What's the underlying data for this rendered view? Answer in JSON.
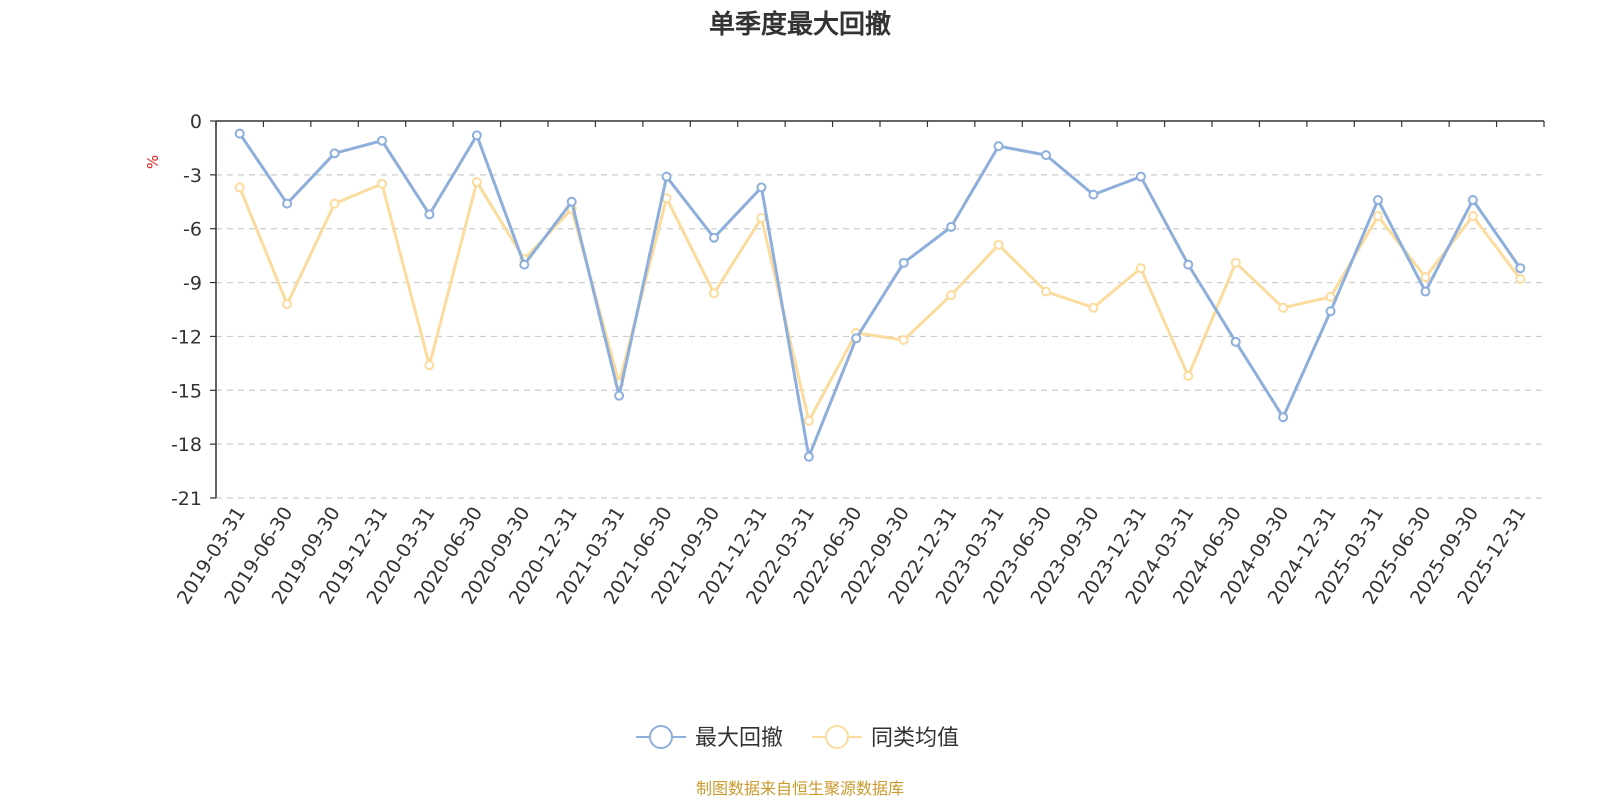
{
  "chart_data": {
    "type": "line",
    "title": "单季度最大回撤",
    "ylabel": "%",
    "ylim": [
      -21,
      0
    ],
    "yticks": [
      0,
      -3,
      -6,
      -9,
      -12,
      -15,
      -18,
      -21
    ],
    "grid": "horizontal dashed",
    "legend_position": "bottom-center",
    "x": [
      "2019-03-31",
      "2019-06-30",
      "2019-09-30",
      "2019-12-31",
      "2020-03-31",
      "2020-06-30",
      "2020-09-30",
      "2020-12-31",
      "2021-03-31",
      "2021-06-30",
      "2021-09-30",
      "2021-12-31",
      "2022-03-31",
      "2022-06-30",
      "2022-09-30",
      "2022-12-31",
      "2023-03-31",
      "2023-06-30",
      "2023-09-30",
      "2023-12-31",
      "2024-03-31",
      "2024-06-30",
      "2024-09-30",
      "2024-12-31",
      "2025-03-31",
      "2025-06-30",
      "2025-09-30",
      "2025-12-31"
    ],
    "series": [
      {
        "name": "最大回撤",
        "color": "#8eaedb",
        "values": [
          -0.7,
          -4.6,
          -1.8,
          -1.1,
          -5.2,
          -0.8,
          -8.0,
          -4.5,
          -15.3,
          -3.1,
          -6.5,
          -3.7,
          -18.7,
          -12.1,
          -7.9,
          -5.9,
          -1.4,
          -1.9,
          -4.1,
          -3.1,
          -8.0,
          -12.3,
          -16.5,
          -10.6,
          -4.4,
          -9.5,
          -4.4,
          -8.2
        ]
      },
      {
        "name": "同类均值",
        "color": "#fbdc9e",
        "values": [
          -3.7,
          -10.2,
          -4.6,
          -3.5,
          -13.6,
          -3.4,
          -7.7,
          -4.9,
          -14.6,
          -4.3,
          -9.6,
          -5.4,
          -16.7,
          -11.8,
          -12.2,
          -9.7,
          -6.9,
          -9.5,
          -10.4,
          -8.2,
          -14.2,
          -7.9,
          -10.4,
          -9.8,
          -5.3,
          -8.7,
          -5.3,
          -8.8
        ]
      }
    ]
  },
  "source_text": "制图数据来自恒生聚源数据库",
  "colors": {
    "axis": "#333333",
    "grid": "#cccccc",
    "unit": "#e02020",
    "source": "#c99a2e"
  }
}
